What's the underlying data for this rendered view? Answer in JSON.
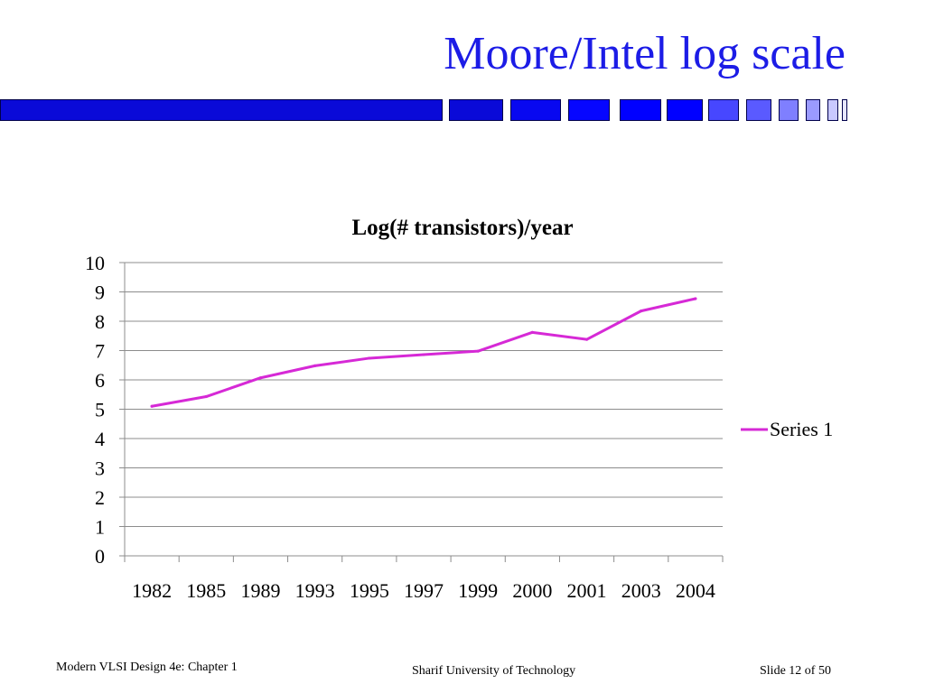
{
  "slide": {
    "title": "Moore/Intel log scale"
  },
  "header_bar": {
    "colors": [
      "#0a0ad8",
      "#0a0ad8",
      "#0808f0",
      "#0606ff",
      "#0000ff",
      "#0000ff",
      "#4747ff",
      "#5a5aff",
      "#7f7fff",
      "#9a9aff",
      "#c8c8ff",
      "#e6e6ff"
    ]
  },
  "chart_data": {
    "type": "line",
    "title": "Log(# transistors)/year",
    "categories": [
      "1982",
      "1985",
      "1989",
      "1993",
      "1995",
      "1997",
      "1999",
      "2000",
      "2001",
      "2003",
      "2004"
    ],
    "series": [
      {
        "name": "Series 1",
        "color": "#d629d6",
        "values": [
          5.1,
          5.43,
          6.07,
          6.48,
          6.74,
          6.86,
          6.98,
          7.62,
          7.38,
          8.35,
          8.77
        ]
      }
    ],
    "ylim": [
      0,
      10
    ],
    "yticks": [
      "0",
      "1",
      "2",
      "3",
      "4",
      "5",
      "6",
      "7",
      "8",
      "9",
      "10"
    ],
    "grid": true,
    "legend_position": "right"
  },
  "footer": {
    "left": "Modern VLSI Design 4e: Chapter 1",
    "center": "Sharif University of  Technology",
    "right": "Slide 12 of 50"
  }
}
